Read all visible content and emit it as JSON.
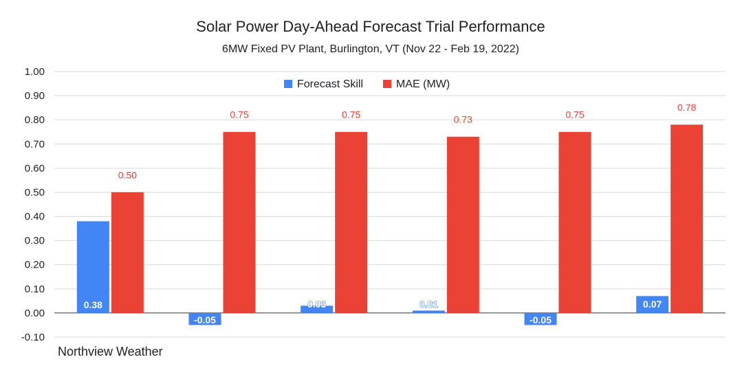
{
  "chart_data": {
    "type": "bar",
    "title": "Solar Power Day-Ahead Forecast Trial Performance",
    "subtitle": "6MW Fixed PV Plant, Burlington, VT (Nov 22 - Feb 19, 2022)",
    "categories": [
      "Northview Weather",
      "",
      "",
      "",
      "",
      ""
    ],
    "series": [
      {
        "name": "Forecast Skill",
        "color": "#4285f4",
        "values": [
          0.38,
          -0.05,
          0.03,
          0.01,
          -0.05,
          0.07
        ],
        "labels": [
          "0.38",
          "-0.05",
          "0.03",
          "0.01",
          "-0.05",
          "0.07"
        ]
      },
      {
        "name": "MAE (MW)",
        "color": "#ea4335",
        "values": [
          0.5,
          0.75,
          0.75,
          0.73,
          0.75,
          0.78
        ],
        "labels": [
          "0.50",
          "0.75",
          "0.75",
          "0.73",
          "0.75",
          "0.78"
        ]
      }
    ],
    "ylim": [
      -0.1,
      1.0
    ],
    "yticks": [
      "1.00",
      "0.90",
      "0.80",
      "0.70",
      "0.60",
      "0.50",
      "0.40",
      "0.30",
      "0.20",
      "0.10",
      "0.00",
      "-0.10"
    ],
    "ytick_values": [
      1.0,
      0.9,
      0.8,
      0.7,
      0.6,
      0.5,
      0.4,
      0.3,
      0.2,
      0.1,
      0.0,
      -0.1
    ],
    "grid": true,
    "legend_position": "top"
  }
}
